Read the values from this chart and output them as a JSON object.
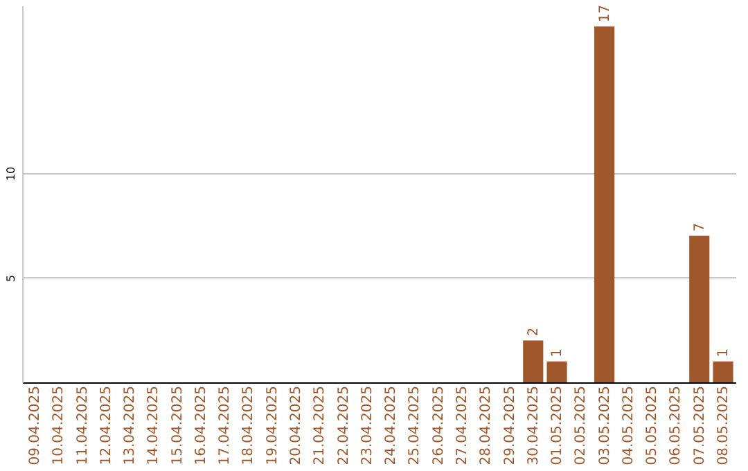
{
  "chart_data": {
    "type": "bar",
    "categories": [
      "09.04.2025",
      "10.04.2025",
      "11.04.2025",
      "12.04.2025",
      "13.04.2025",
      "14.04.2025",
      "15.04.2025",
      "16.04.2025",
      "17.04.2025",
      "18.04.2025",
      "19.04.2025",
      "20.04.2025",
      "21.04.2025",
      "22.04.2025",
      "23.04.2025",
      "24.04.2025",
      "25.04.2025",
      "26.04.2025",
      "27.04.2025",
      "28.04.2025",
      "29.04.2025",
      "30.04.2025",
      "01.05.2025",
      "02.05.2025",
      "03.05.2025",
      "04.05.2025",
      "05.05.2025",
      "06.05.2025",
      "07.05.2025",
      "08.05.2025"
    ],
    "values": [
      0,
      0,
      0,
      0,
      0,
      0,
      0,
      0,
      0,
      0,
      0,
      0,
      0,
      0,
      0,
      0,
      0,
      0,
      0,
      0,
      0,
      2,
      1,
      0,
      17,
      0,
      0,
      0,
      7,
      1
    ],
    "value_labels": [
      null,
      null,
      null,
      null,
      null,
      null,
      null,
      null,
      null,
      null,
      null,
      null,
      null,
      null,
      null,
      null,
      null,
      null,
      null,
      null,
      null,
      "2",
      "1",
      null,
      "17",
      null,
      null,
      null,
      "7",
      "1"
    ],
    "color": "#a0572b",
    "ylim": [
      0,
      18
    ],
    "yticks": [
      5,
      10
    ],
    "grid": "y"
  }
}
